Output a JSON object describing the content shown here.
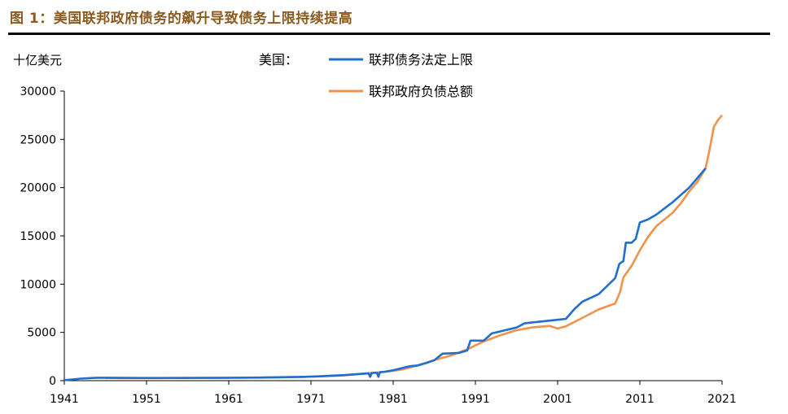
{
  "figure_title": "图 1：美国联邦政府债务的飙升导致债务上限持续提高",
  "chart_data": {
    "type": "line",
    "title": "图 1：美国联邦政府债务的飙升导致债务上限持续提高",
    "ylabel": "十亿美元",
    "xlabel": "",
    "ylim": [
      0,
      30000
    ],
    "xlim": [
      1941,
      2021
    ],
    "x_ticks": [
      "1941",
      "1951",
      "1961",
      "1971",
      "1981",
      "1991",
      "2001",
      "2011",
      "2021"
    ],
    "y_ticks": [
      "0",
      "5000",
      "10000",
      "15000",
      "20000",
      "25000",
      "30000"
    ],
    "legend_prefix": "美国：",
    "legend_position": "top",
    "grid": false,
    "series": [
      {
        "name": "联邦债务法定上限",
        "color": "#1f6fd1",
        "points": [
          [
            1941,
            49
          ],
          [
            1942,
            125
          ],
          [
            1943,
            210
          ],
          [
            1944,
            260
          ],
          [
            1945,
            300
          ],
          [
            1946,
            300
          ],
          [
            1950,
            275
          ],
          [
            1955,
            281
          ],
          [
            1960,
            293
          ],
          [
            1965,
            324
          ],
          [
            1970,
            395
          ],
          [
            1972,
            450
          ],
          [
            1975,
            577
          ],
          [
            1977,
            700
          ],
          [
            1978,
            752
          ],
          [
            1978.2,
            400
          ],
          [
            1978.4,
            798
          ],
          [
            1979,
            830
          ],
          [
            1979.2,
            400
          ],
          [
            1979.4,
            880
          ],
          [
            1980,
            925
          ],
          [
            1981,
            1079
          ],
          [
            1982,
            1290
          ],
          [
            1983,
            1490
          ],
          [
            1984,
            1573
          ],
          [
            1985,
            1823
          ],
          [
            1986,
            2111
          ],
          [
            1987,
            2800
          ],
          [
            1989,
            2870
          ],
          [
            1990,
            3123
          ],
          [
            1990.4,
            4145
          ],
          [
            1992,
            4145
          ],
          [
            1993,
            4900
          ],
          [
            1996,
            5500
          ],
          [
            1997,
            5950
          ],
          [
            2002,
            6400
          ],
          [
            2003,
            7384
          ],
          [
            2004,
            8184
          ],
          [
            2006,
            8965
          ],
          [
            2008,
            10615
          ],
          [
            2008.5,
            12104
          ],
          [
            2009,
            12394
          ],
          [
            2009.3,
            14294
          ],
          [
            2010,
            14294
          ],
          [
            2010.5,
            14694
          ],
          [
            2011,
            16394
          ],
          [
            2012,
            16699
          ],
          [
            2013,
            17200
          ],
          [
            2015,
            18500
          ],
          [
            2017,
            20000
          ],
          [
            2019,
            22000
          ]
        ]
      },
      {
        "name": "联邦政府负债总额",
        "color": "#f0924a",
        "points": [
          [
            1946,
            269
          ],
          [
            1950,
            257
          ],
          [
            1955,
            274
          ],
          [
            1960,
            290
          ],
          [
            1965,
            317
          ],
          [
            1970,
            380
          ],
          [
            1975,
            541
          ],
          [
            1980,
            909
          ],
          [
            1982,
            1137
          ],
          [
            1984,
            1572
          ],
          [
            1986,
            2125
          ],
          [
            1988,
            2602
          ],
          [
            1990,
            3233
          ],
          [
            1992,
            4065
          ],
          [
            1994,
            4693
          ],
          [
            1996,
            5225
          ],
          [
            1998,
            5526
          ],
          [
            2000,
            5674
          ],
          [
            2001,
            5400
          ],
          [
            2002,
            5628
          ],
          [
            2004,
            6500
          ],
          [
            2006,
            7379
          ],
          [
            2008,
            8000
          ],
          [
            2008.6,
            9200
          ],
          [
            2009,
            10700
          ],
          [
            2010,
            11900
          ],
          [
            2011,
            13500
          ],
          [
            2012,
            14900
          ],
          [
            2013,
            16000
          ],
          [
            2014,
            16700
          ],
          [
            2015,
            17400
          ],
          [
            2016,
            18400
          ],
          [
            2017,
            19600
          ],
          [
            2018,
            20600
          ],
          [
            2019,
            22000
          ],
          [
            2019.5,
            24000
          ],
          [
            2020,
            26300
          ],
          [
            2020.5,
            27000
          ],
          [
            2021,
            27500
          ]
        ]
      }
    ]
  }
}
